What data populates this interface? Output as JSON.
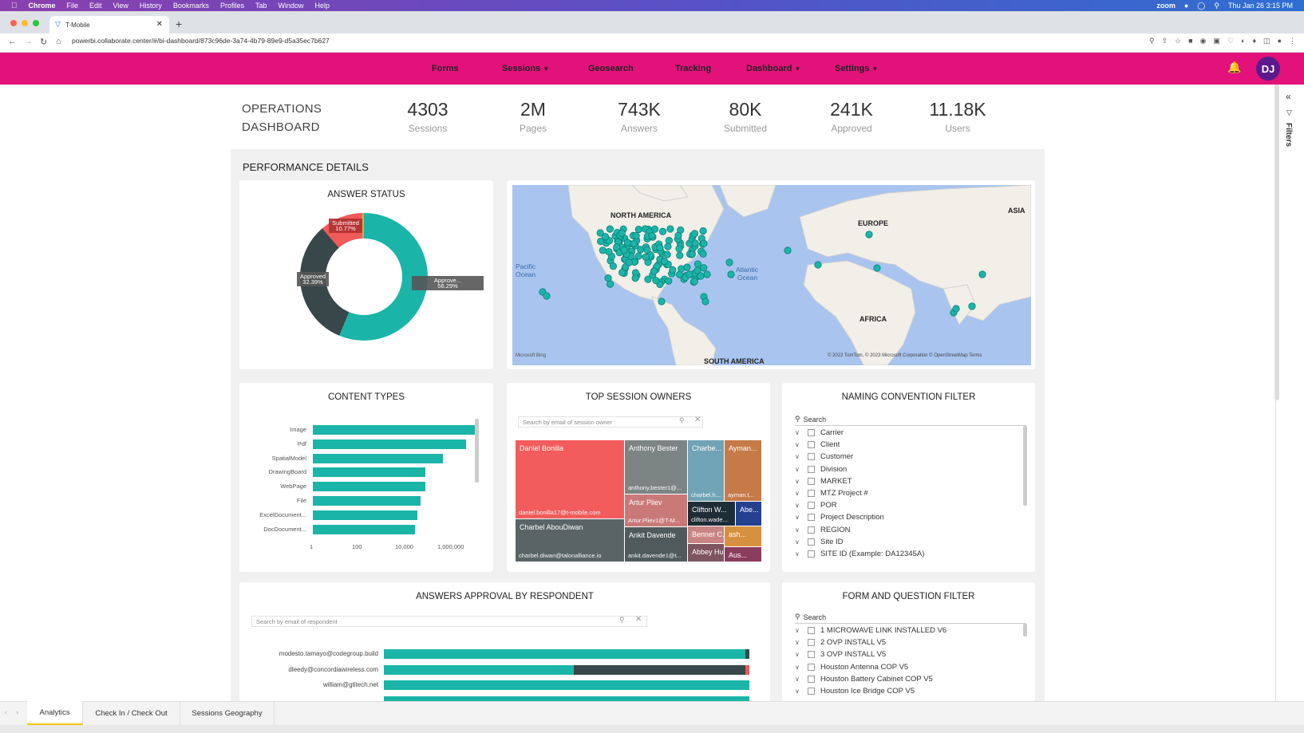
{
  "menubar": {
    "items": [
      "Chrome",
      "File",
      "Edit",
      "View",
      "History",
      "Bookmarks",
      "Profiles",
      "Tab",
      "Window",
      "Help"
    ],
    "app": "zoom",
    "datetime": "Thu Jan 26  3:15 PM"
  },
  "browser": {
    "tab_title": "T-Mobile",
    "url": "powerbi.collaborate.center/#/bi-dashboard/873c96de-3a74-4b79-89e9-d5a35ec7b627"
  },
  "nav": {
    "items": [
      {
        "label": "Forms",
        "dropdown": false
      },
      {
        "label": "Sessions",
        "dropdown": true
      },
      {
        "label": "Geosearch",
        "dropdown": false
      },
      {
        "label": "Tracking",
        "dropdown": false
      },
      {
        "label": "Dashboard",
        "dropdown": true
      },
      {
        "label": "Settings",
        "dropdown": true
      }
    ],
    "avatar_initials": "DJ",
    "accent": "#e2127a"
  },
  "filters_label": "Filters",
  "dashboard": {
    "title_line1": "OPERATIONS",
    "title_line2": "DASHBOARD",
    "kpis": [
      {
        "value": "4303",
        "label": "Sessions"
      },
      {
        "value": "2M",
        "label": "Pages"
      },
      {
        "value": "743K",
        "label": "Answers"
      },
      {
        "value": "80K",
        "label": "Submitted"
      },
      {
        "value": "241K",
        "label": "Approved"
      },
      {
        "value": "11.18K",
        "label": "Users"
      }
    ],
    "section_title": "PERFORMANCE DETAILS"
  },
  "answer_status": {
    "title": "ANSWER STATUS",
    "segments": [
      {
        "name": "Approve...",
        "percent": 56.29,
        "label": "56.29%",
        "color": "#1ab5a8"
      },
      {
        "name": "Approved",
        "percent": 32.39,
        "label": "32.39%",
        "color": "#37474a"
      },
      {
        "name": "Submitted",
        "percent": 10.77,
        "label": "10.77%",
        "color": "#f05a5a"
      },
      {
        "name": "",
        "percent": 0.55,
        "label": "",
        "color": "#f5a623"
      }
    ]
  },
  "map": {
    "labels": [
      "NORTH AMERICA",
      "EUROPE",
      "ASIA",
      "Pacific",
      "Ocean",
      "Atlantic",
      "Ocean",
      "AFRICA",
      "SOUTH AMERICA"
    ],
    "attribution": "© 2022 TomTom, © 2023 Microsoft Corporation  © OpenStreetMap  Terms",
    "logo": "Microsoft Bing"
  },
  "content_types": {
    "title": "CONTENT TYPES",
    "chart_data": {
      "type": "bar",
      "orientation": "horizontal",
      "x_scale": "log",
      "categories": [
        "Image",
        "Pdf",
        "SpatialModel",
        "DrawingBoard",
        "WebPage",
        "File",
        "ExcelDocument...",
        "DocDocument..."
      ],
      "values": [
        800000,
        350000,
        50000,
        12000,
        12000,
        8000,
        6000,
        5000
      ],
      "x_ticks": [
        "1",
        "100",
        "10,000",
        "1,000,000"
      ]
    }
  },
  "top_owners": {
    "title": "TOP SESSION OWNERS",
    "search_placeholder": "Search by email of session owner",
    "cells": [
      {
        "name": "Daniel Bonilla",
        "email": "daniel.bonilla17@t-mobile.com",
        "color": "#f25c5c"
      },
      {
        "name": "Charbel AbouDiwan",
        "email": "charbel.diwan@talonalliance.io",
        "color": "#5a6466"
      },
      {
        "name": "Anthony Bester",
        "email": "anthony.bester1@...",
        "color": "#7c8484"
      },
      {
        "name": "Artur Pliev",
        "email": "Artur.Pliev1@T-M...",
        "color": "#c97a78"
      },
      {
        "name": "Ankit Davende",
        "email": "ankit.davende1@t...",
        "color": "#505a5c"
      },
      {
        "name": "Charbe...",
        "email": "charbel.h...",
        "color": "#6fa3b5"
      },
      {
        "name": "Ayman...",
        "email": "ayman.t...",
        "color": "#c57a48"
      },
      {
        "name": "Clifton W...",
        "email": "clifton.wade...",
        "color": "#1f2d36"
      },
      {
        "name": "Abe...",
        "email": "",
        "color": "#25408f"
      },
      {
        "name": "Benner C...",
        "email": "",
        "color": "#c98585"
      },
      {
        "name": "ash...",
        "email": "",
        "color": "#d6903f"
      },
      {
        "name": "Abbey Hu...",
        "email": "",
        "color": "#7d5560"
      },
      {
        "name": "Aus...",
        "email": "",
        "color": "#8a3c5d"
      }
    ]
  },
  "naming_filter": {
    "title": "NAMING CONVENTION FILTER",
    "search": "Search",
    "items": [
      "Carrier",
      "Client",
      "Customer",
      "Division",
      "MARKET",
      "MTZ Project #",
      "POR",
      "Project Description",
      "REGION",
      "Site ID",
      "SITE ID (Example: DA12345A)"
    ]
  },
  "approval": {
    "title": "ANSWERS APPROVAL BY RESPONDENT",
    "search_placeholder": "Search by email of respondent",
    "rows": [
      {
        "name": "modesto.tamayo@codegroup.build",
        "teal": 0.988,
        "dark": 0.012,
        "red": 0
      },
      {
        "name": "dleedy@concordiawireless.com",
        "teal": 0.52,
        "dark": 0.47,
        "red": 0.01
      },
      {
        "name": "william@gtitech.net",
        "teal": 1.0,
        "dark": 0,
        "red": 0
      },
      {
        "name": "",
        "teal": 1.0,
        "dark": 0,
        "red": 0
      }
    ]
  },
  "form_filter": {
    "title": "FORM AND QUESTION FILTER",
    "search": "Search",
    "items": [
      "1 MICROWAVE LINK INSTALLED V6",
      "2 OVP INSTALL V5",
      "3 OVP INSTALL V5",
      "Houston Antenna COP V5",
      "Houston Battery Cabinet COP V5",
      "Houston Ice Bridge COP V5"
    ]
  },
  "bottom_tabs": [
    "Analytics",
    "Check In / Check Out",
    "Sessions Geography"
  ]
}
